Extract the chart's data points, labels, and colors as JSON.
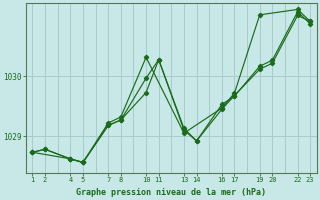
{
  "bg_color": "#c8e8e8",
  "grid_color": "#a8cccc",
  "line_color": "#1a6b1a",
  "title": "Graphe pression niveau de la mer (hPa)",
  "title_color": "#1a6b1a",
  "ylim": [
    1028.38,
    1031.22
  ],
  "yticks": [
    1029,
    1030
  ],
  "xlim": [
    0.5,
    23.5
  ],
  "xtick_positions": [
    1,
    2,
    4,
    5,
    7,
    8,
    10,
    11,
    13,
    14,
    16,
    17,
    19,
    20,
    22,
    23
  ],
  "xtick_labels": [
    "1",
    "2",
    "4",
    "5",
    "7",
    "8",
    "10",
    "11",
    "13",
    "14",
    "16",
    "17",
    "19",
    "20",
    "22",
    "23"
  ],
  "vgrid_positions": [
    1,
    2,
    3,
    4,
    5,
    6,
    7,
    8,
    9,
    10,
    11,
    12,
    13,
    14,
    15,
    16,
    17,
    18,
    19,
    20,
    21,
    22,
    23
  ],
  "lines": [
    {
      "x": [
        1,
        2,
        4,
        5,
        7,
        8,
        10,
        11,
        13,
        14,
        16,
        17,
        19,
        20,
        22,
        23
      ],
      "y": [
        1028.73,
        1028.78,
        1028.62,
        1028.56,
        1029.18,
        1029.27,
        1029.97,
        1030.28,
        1029.13,
        1028.92,
        1029.53,
        1029.67,
        1030.17,
        1030.27,
        1031.08,
        1030.88
      ]
    },
    {
      "x": [
        1,
        2,
        4,
        5,
        7,
        8,
        10,
        11,
        13,
        14,
        16,
        17,
        19,
        20,
        22,
        23
      ],
      "y": [
        1028.73,
        1028.78,
        1028.62,
        1028.56,
        1029.18,
        1029.27,
        1029.73,
        1030.28,
        1029.1,
        1028.92,
        1029.45,
        1029.68,
        1030.12,
        1030.22,
        1031.02,
        1030.92
      ]
    },
    {
      "x": [
        1,
        4,
        5,
        7,
        8,
        10,
        13,
        16,
        17,
        19,
        22,
        23
      ],
      "y": [
        1028.73,
        1028.62,
        1028.56,
        1029.22,
        1029.32,
        1030.32,
        1029.05,
        1029.47,
        1029.72,
        1031.03,
        1031.12,
        1030.92
      ]
    }
  ]
}
